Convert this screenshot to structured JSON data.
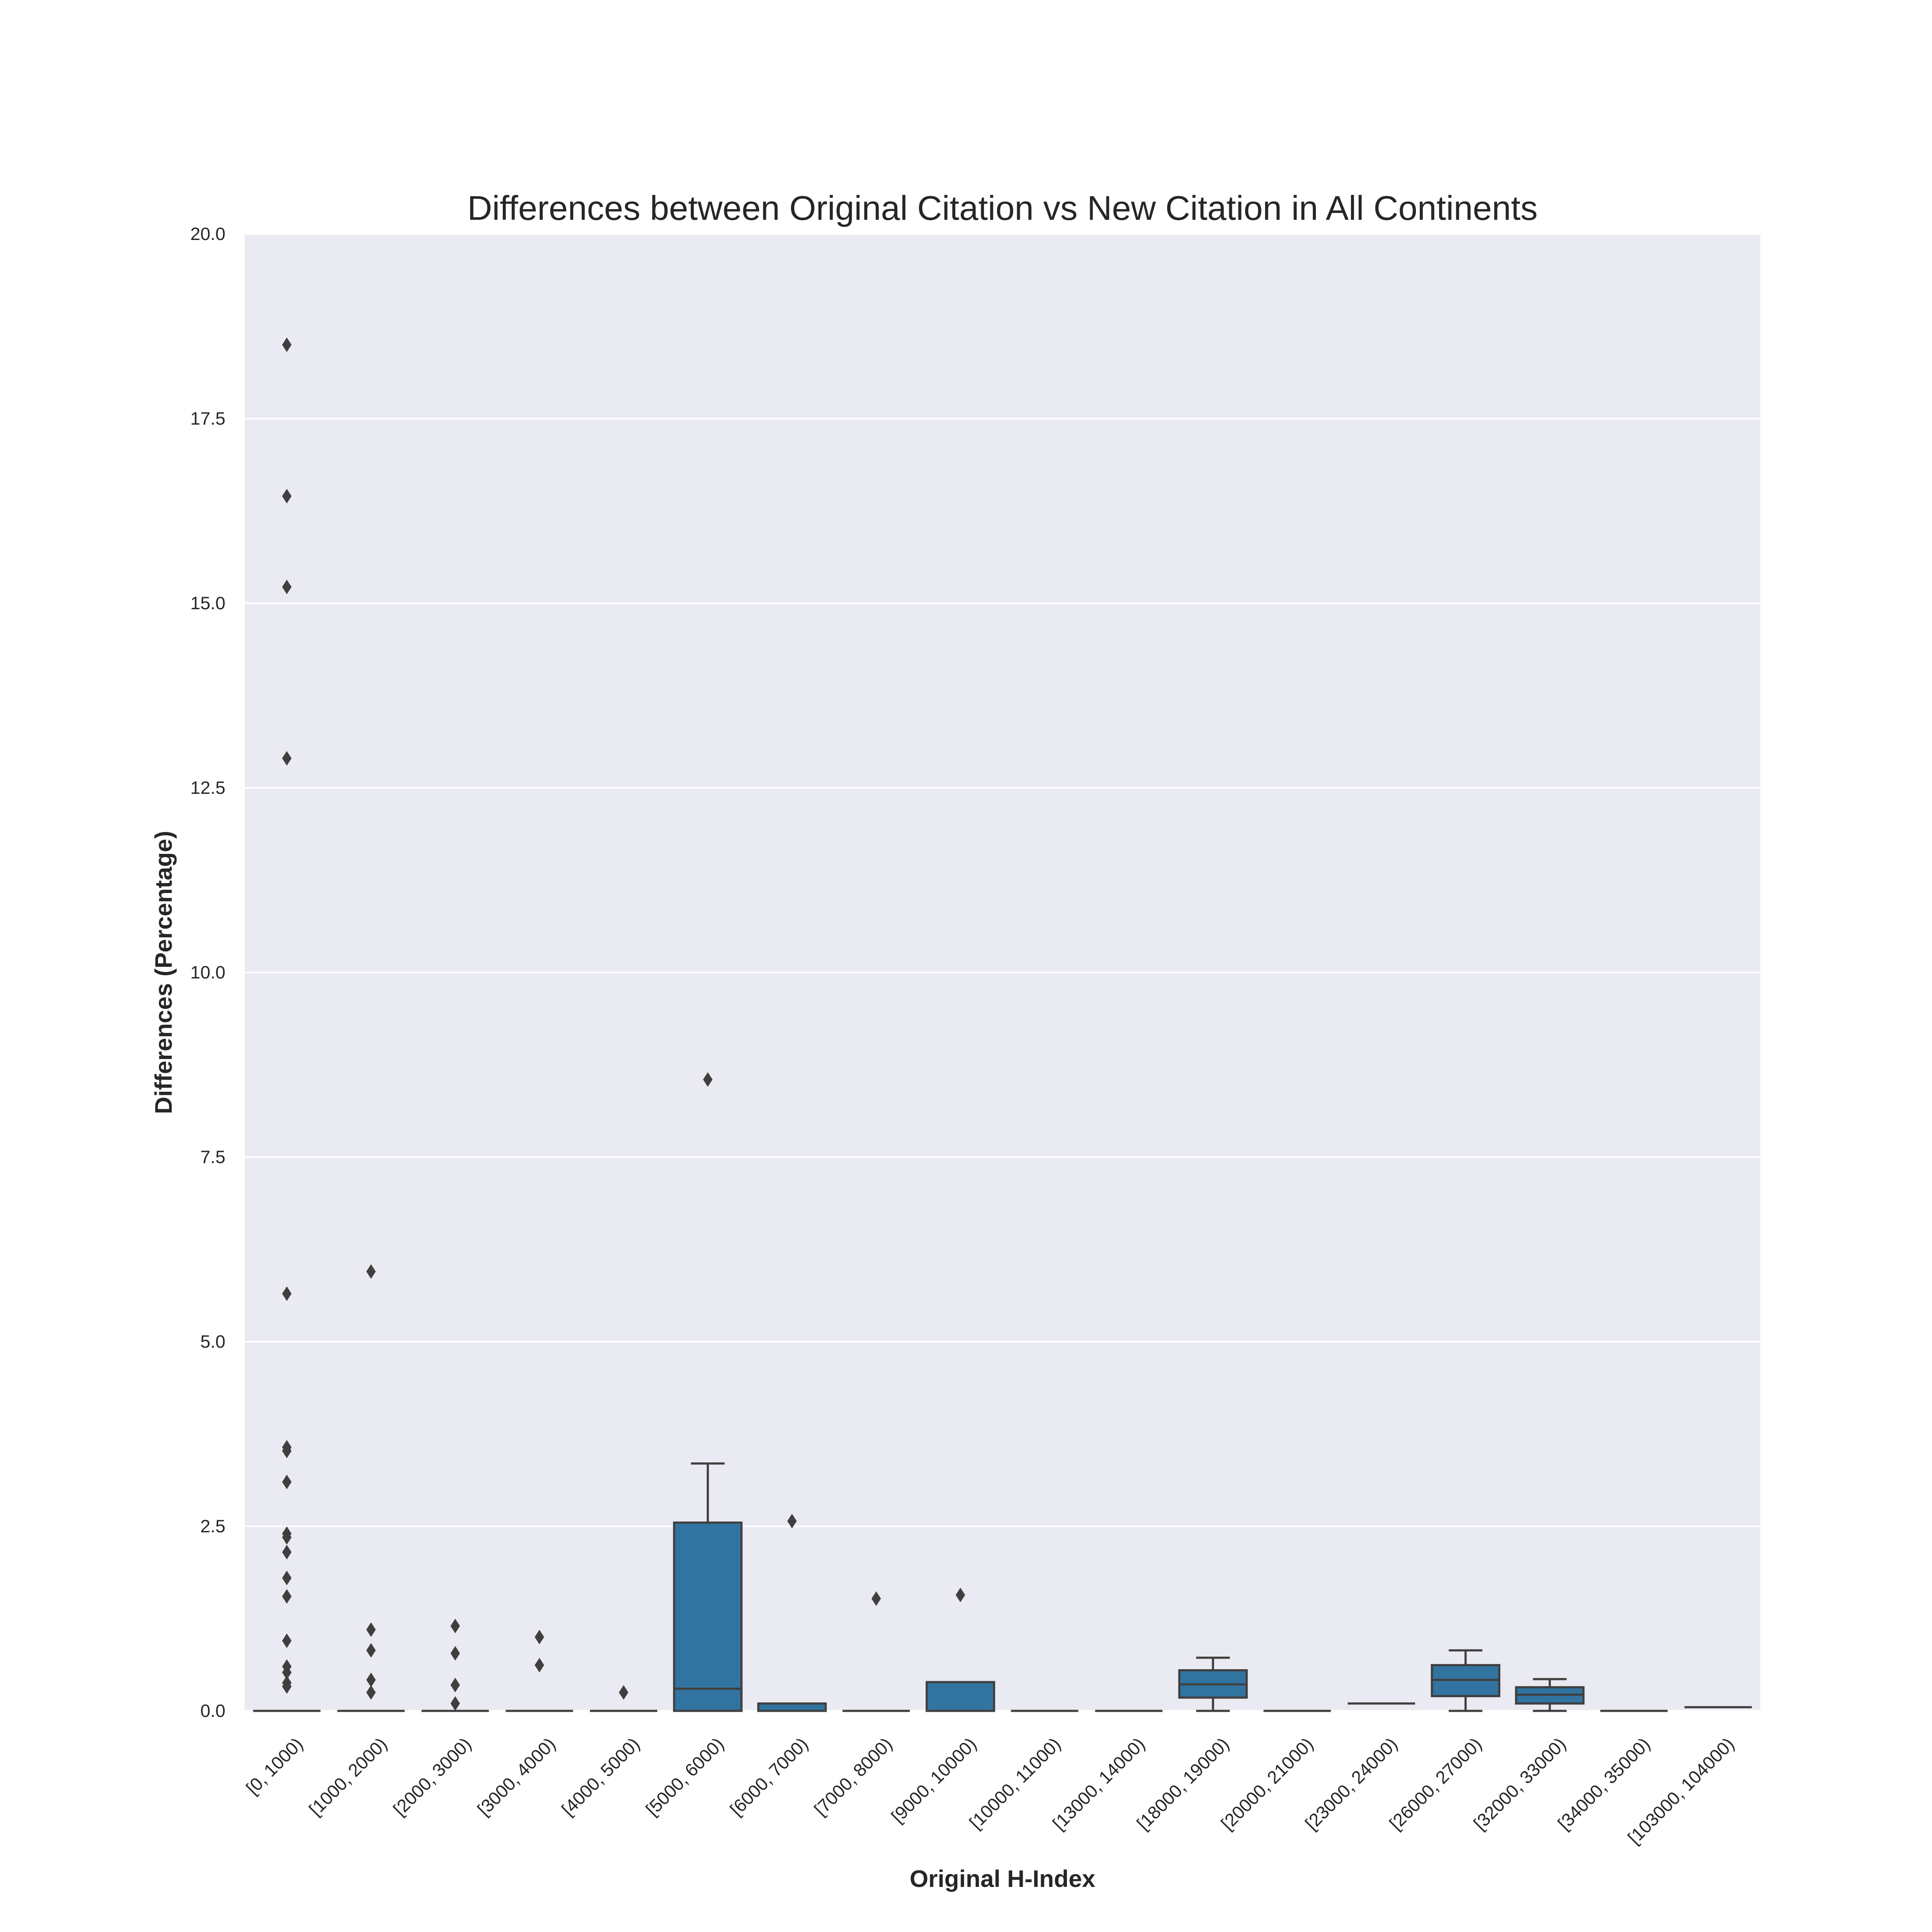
{
  "chart_data": {
    "type": "box",
    "title": "Differences between Original Citation vs New Citation in All Continents",
    "xlabel": "Original H-Index",
    "ylabel": "Differences (Percentage)",
    "ylim": [
      0,
      20
    ],
    "yticks": [
      "0.0",
      "2.5",
      "5.0",
      "7.5",
      "10.0",
      "12.5",
      "15.0",
      "17.5",
      "20.0"
    ],
    "grid": "horizontal",
    "colors": {
      "box": "#3274a1",
      "line": "#3f3f3f",
      "background": "#eaeaf2",
      "grid": "#ffffff"
    },
    "categories": [
      "[0, 1000)",
      "[1000, 2000)",
      "[2000, 3000)",
      "[3000, 4000)",
      "[4000, 5000)",
      "[5000, 6000)",
      "[6000, 7000)",
      "[7000, 8000)",
      "[9000, 10000)",
      "[10000, 11000)",
      "[13000, 14000)",
      "[18000, 19000)",
      "[20000, 21000)",
      "[23000, 24000)",
      "[26000, 27000)",
      "[32000, 33000)",
      "[34000, 35000)",
      "[103000, 104000)"
    ],
    "boxes": [
      {
        "q1": 0,
        "median": 0,
        "q3": 0,
        "whislo": 0,
        "whishi": 0,
        "fliers": [
          18.5,
          16.45,
          15.22,
          12.9,
          5.65,
          3.57,
          3.52,
          3.1,
          2.4,
          2.35,
          2.15,
          1.8,
          1.55,
          0.95,
          0.6,
          0.52,
          0.38,
          0.33
        ]
      },
      {
        "q1": 0,
        "median": 0,
        "q3": 0,
        "whislo": 0,
        "whishi": 0,
        "fliers": [
          5.95,
          1.1,
          0.82,
          0.42,
          0.25
        ]
      },
      {
        "q1": 0,
        "median": 0,
        "q3": 0,
        "whislo": 0,
        "whishi": 0,
        "fliers": [
          1.15,
          0.78,
          0.35,
          0.1
        ]
      },
      {
        "q1": 0,
        "median": 0,
        "q3": 0,
        "whislo": 0,
        "whishi": 0,
        "fliers": [
          1.0,
          0.62
        ]
      },
      {
        "q1": 0,
        "median": 0,
        "q3": 0,
        "whislo": 0,
        "whishi": 0,
        "fliers": [
          0.25
        ]
      },
      {
        "q1": 0,
        "median": 0.3,
        "q3": 2.55,
        "whislo": 0,
        "whishi": 3.35,
        "fliers": [
          8.55
        ]
      },
      {
        "q1": 0,
        "median": 0,
        "q3": 0.1,
        "whislo": 0,
        "whishi": 0.1,
        "fliers": [
          2.57
        ]
      },
      {
        "q1": 0,
        "median": 0,
        "q3": 0,
        "whislo": 0,
        "whishi": 0,
        "fliers": [
          1.52
        ]
      },
      {
        "q1": 0,
        "median": 0,
        "q3": 0.39,
        "whislo": 0,
        "whishi": 0.39,
        "fliers": [
          1.57
        ]
      },
      {
        "q1": 0,
        "median": 0,
        "q3": 0,
        "whislo": 0,
        "whishi": 0,
        "fliers": []
      },
      {
        "q1": 0,
        "median": 0,
        "q3": 0,
        "whislo": 0,
        "whishi": 0,
        "fliers": []
      },
      {
        "q1": 0.18,
        "median": 0.36,
        "q3": 0.55,
        "whislo": 0,
        "whishi": 0.72,
        "fliers": []
      },
      {
        "q1": 0,
        "median": 0,
        "q3": 0,
        "whislo": 0,
        "whishi": 0,
        "fliers": []
      },
      {
        "q1": 0.1,
        "median": 0.1,
        "q3": 0.1,
        "whislo": 0.1,
        "whishi": 0.1,
        "fliers": []
      },
      {
        "q1": 0.2,
        "median": 0.42,
        "q3": 0.62,
        "whislo": 0,
        "whishi": 0.82,
        "fliers": []
      },
      {
        "q1": 0.1,
        "median": 0.22,
        "q3": 0.32,
        "whislo": 0,
        "whishi": 0.43,
        "fliers": []
      },
      {
        "q1": 0,
        "median": 0,
        "q3": 0,
        "whislo": 0,
        "whishi": 0,
        "fliers": []
      },
      {
        "q1": 0.05,
        "median": 0.05,
        "q3": 0.05,
        "whislo": 0.05,
        "whishi": 0.05,
        "fliers": []
      }
    ]
  }
}
